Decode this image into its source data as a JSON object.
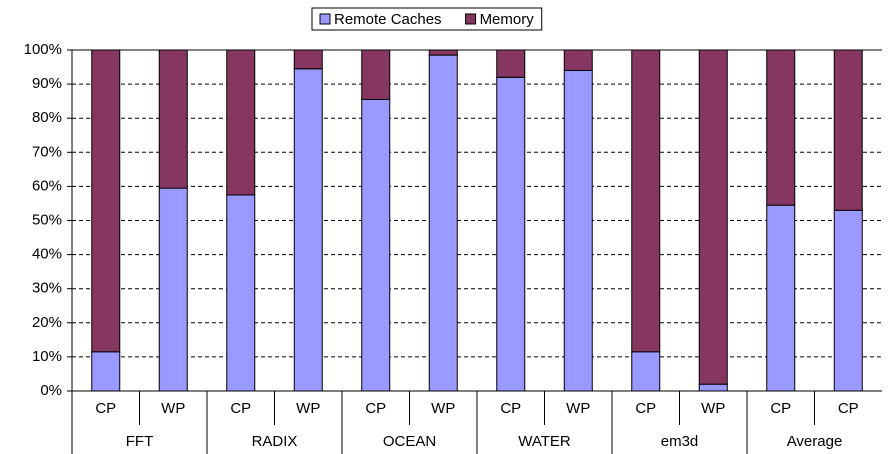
{
  "chart_data": {
    "type": "stacked_bar",
    "categories": [
      "CP",
      "WP",
      "CP",
      "WP",
      "CP",
      "WP",
      "CP",
      "WP",
      "CP",
      "WP",
      "CP",
      "CP"
    ],
    "groups": [
      "FFT",
      "RADIX",
      "OCEAN",
      "WATER",
      "em3d",
      "Average"
    ],
    "series": [
      {
        "name": "Remote Caches",
        "color": "#9999ff",
        "values": [
          11.5,
          59.5,
          57.5,
          94.5,
          85.5,
          98.5,
          92,
          94,
          11.5,
          2,
          54.5,
          53
        ]
      },
      {
        "name": "Memory",
        "color": "#853762",
        "values": [
          88.5,
          40.5,
          42.5,
          5.5,
          14.5,
          1.5,
          8,
          6,
          88.5,
          98,
          45.5,
          47
        ]
      }
    ],
    "ylim": [
      0,
      100
    ],
    "yticks": [
      {
        "value": 0,
        "label": "0%"
      },
      {
        "value": 10,
        "label": "10%"
      },
      {
        "value": 20,
        "label": "20%"
      },
      {
        "value": 30,
        "label": "30%"
      },
      {
        "value": 40,
        "label": "40%"
      },
      {
        "value": 50,
        "label": "50%"
      },
      {
        "value": 60,
        "label": "60%"
      },
      {
        "value": 70,
        "label": "70%"
      },
      {
        "value": 80,
        "label": "80%"
      },
      {
        "value": 90,
        "label": "90%"
      },
      {
        "value": 100,
        "label": "100%"
      }
    ],
    "grid": true,
    "legend": "top"
  }
}
